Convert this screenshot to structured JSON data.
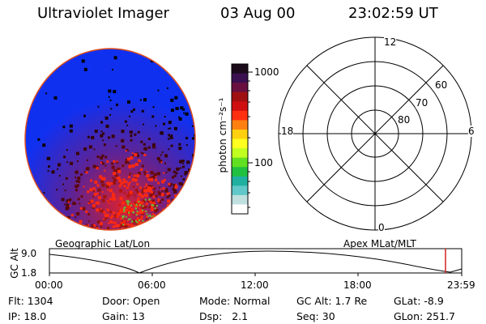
{
  "header": {
    "instrument": "Ultraviolet Imager",
    "date": "03 Aug 00",
    "time": "23:02:59 UT"
  },
  "colorbar": {
    "unit_label": "photon cm⁻²s⁻¹",
    "ticks": [
      "1000",
      "100"
    ],
    "colors": [
      "#1a0a1a",
      "#3a1050",
      "#6a1040",
      "#a01010",
      "#d01010",
      "#ff3010",
      "#ff8010",
      "#ffd010",
      "#ffff20",
      "#c0ff20",
      "#60e020",
      "#20c040",
      "#20b0a0",
      "#60c8c8",
      "#c0e0e0",
      "#ffffff"
    ]
  },
  "polar_grid": {
    "mlt_labels": {
      "top": "12",
      "left": "18",
      "right": "6",
      "bottom": "0"
    },
    "lat_labels": [
      "60",
      "70",
      "80"
    ]
  },
  "timeline": {
    "left_label": "Geographic Lat/Lon",
    "right_label": "Apex MLat/MLT",
    "axis_title": "GC Alt",
    "y_ticks": [
      "9.0",
      "1.8"
    ],
    "x_ticks": [
      "00:00",
      "06:00",
      "12:00",
      "18:00",
      "23:59"
    ],
    "marker_color": "#d02020"
  },
  "status": {
    "row1": [
      {
        "label": "Flt:",
        "value": "1304"
      },
      {
        "label": "Door:",
        "value": "Open"
      },
      {
        "label": "Mode:",
        "value": "Normal"
      },
      {
        "label": "GC Alt:",
        "value": "1.7 Re"
      },
      {
        "label": "GLat:",
        "value": "-8.9"
      }
    ],
    "row2": [
      {
        "label": "IP:",
        "value": "18.0"
      },
      {
        "label": "Gain:",
        "value": "13"
      },
      {
        "label": "Dsp:",
        "value": "2.1"
      },
      {
        "label": "Seq:",
        "value": "30"
      },
      {
        "label": "GLon:",
        "value": "251.7"
      }
    ]
  }
}
